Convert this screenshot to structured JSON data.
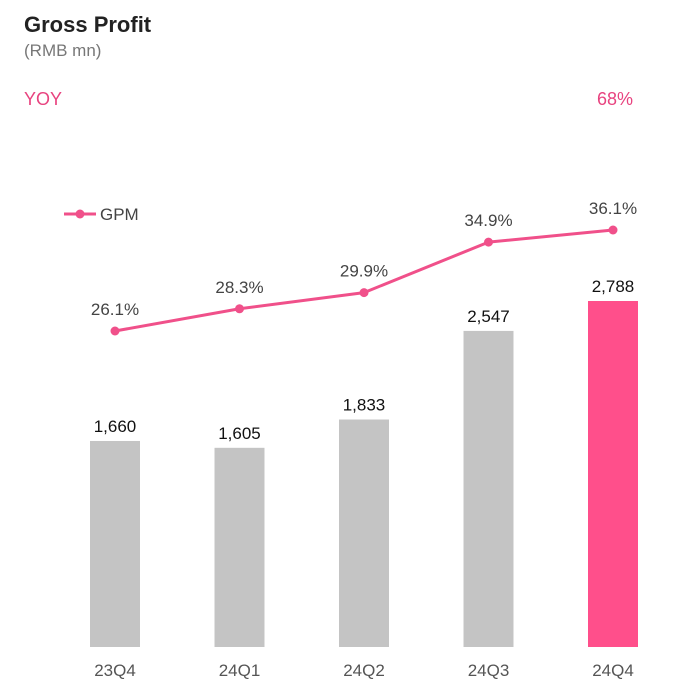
{
  "title": "Gross Profit",
  "subtitle": "(RMB mn)",
  "yoy": {
    "label": "YOY",
    "value": "68%"
  },
  "colors": {
    "bar": "#c4c4c4",
    "bar_highlight": "#ff4f8b",
    "line": "#f0508a",
    "accent": "#e8437f"
  },
  "chart_data": {
    "type": "bar",
    "title": "Gross Profit",
    "ylabel": "RMB mn",
    "categories": [
      "23Q4",
      "24Q1",
      "24Q2",
      "24Q3",
      "24Q4"
    ],
    "series": [
      {
        "name": "Gross Profit",
        "values": [
          1660,
          1605,
          1833,
          2547,
          2788
        ],
        "labels": [
          "1,660",
          "1,605",
          "1,833",
          "2,547",
          "2,788"
        ],
        "highlight_index": 4
      },
      {
        "name": "GPM",
        "type": "line",
        "values": [
          26.1,
          28.3,
          29.9,
          34.9,
          36.1
        ],
        "labels": [
          "26.1%",
          "28.3%",
          "29.9%",
          "34.9%",
          "36.1%"
        ]
      }
    ],
    "legend": [
      "GPM"
    ],
    "legend_position": "top-left",
    "grid": false
  }
}
